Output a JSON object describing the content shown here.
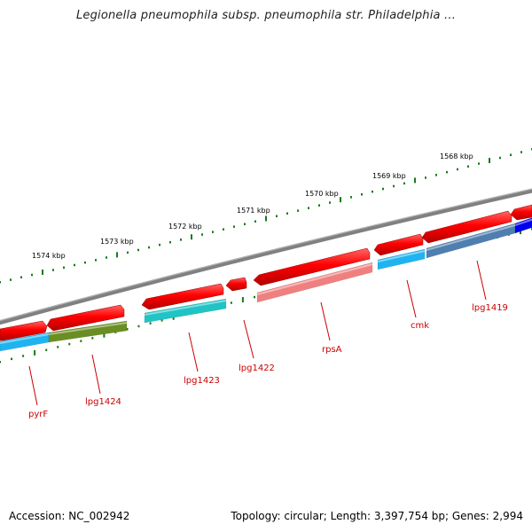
{
  "title": "Legionella pneumophila subsp. pneumophila str. Philadelphia ...",
  "footer": {
    "accession": "Accession: NC_002942",
    "summary": "Topology: circular; Length: 3,397,754 bp; Genes: 2,994"
  },
  "scale_labels": [
    "1574 kbp",
    "1573 kbp",
    "1572 kbp",
    "1571 kbp",
    "1570 kbp",
    "1569 kbp",
    "1568 kbp"
  ],
  "gene_labels": [
    "pyrF",
    "lpg1424",
    "lpg1423",
    "lpg1422",
    "rpsA",
    "cmk",
    "lpg1419"
  ],
  "colors": {
    "backbone": "#808080",
    "forward_feature": "#ff0000",
    "tick": "#1a7a1a",
    "label": "#cc0000"
  },
  "cds_colors": [
    "#1fb4f0",
    "#6b8e23",
    "#20c4c4",
    "#f08080",
    "#1fb4f0",
    "#4f7fb0",
    "#0000ee"
  ]
}
